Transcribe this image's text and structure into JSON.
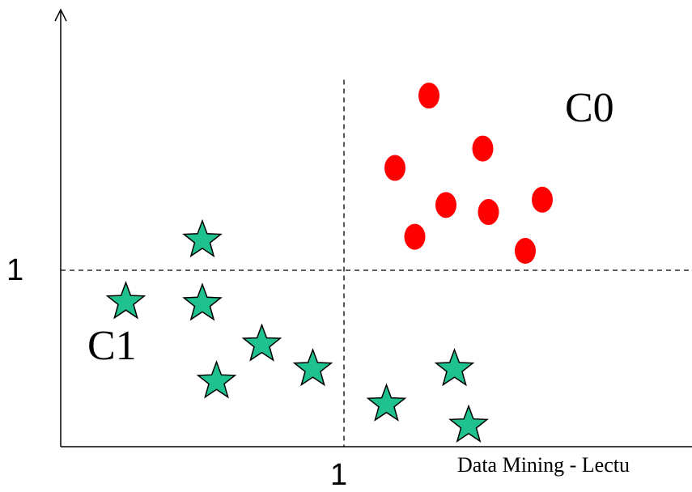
{
  "axis": {
    "x_tick": "1",
    "y_tick": "1"
  },
  "clusters": [
    {
      "label": "C0",
      "marker": "circle",
      "color": "#ff0000"
    },
    {
      "label": "C1",
      "marker": "star",
      "color": "#1fc28f"
    }
  ],
  "footer_text": "Data Mining - Lectu",
  "chart_data": {
    "type": "scatter",
    "x_ticks": [
      "1"
    ],
    "y_ticks": [
      "1"
    ],
    "threshold_x": 1,
    "threshold_y": 1,
    "xlim": [
      0,
      2.2
    ],
    "ylim": [
      0,
      2.08
    ],
    "grid": false,
    "series": [
      {
        "name": "C0",
        "marker": "circle",
        "color": "#ff0000",
        "points": [
          [
            1.3,
            1.99
          ],
          [
            1.49,
            1.69
          ],
          [
            1.18,
            1.58
          ],
          [
            1.36,
            1.37
          ],
          [
            1.51,
            1.33
          ],
          [
            1.7,
            1.4
          ],
          [
            1.25,
            1.19
          ],
          [
            1.64,
            1.11
          ]
        ]
      },
      {
        "name": "C1",
        "marker": "star",
        "color": "#1fc28f",
        "points": [
          [
            0.5,
            1.17
          ],
          [
            0.23,
            0.82
          ],
          [
            0.5,
            0.81
          ],
          [
            0.71,
            0.58
          ],
          [
            0.89,
            0.44
          ],
          [
            0.55,
            0.37
          ],
          [
            1.39,
            0.44
          ],
          [
            1.15,
            0.24
          ],
          [
            1.44,
            0.12
          ]
        ]
      }
    ]
  }
}
